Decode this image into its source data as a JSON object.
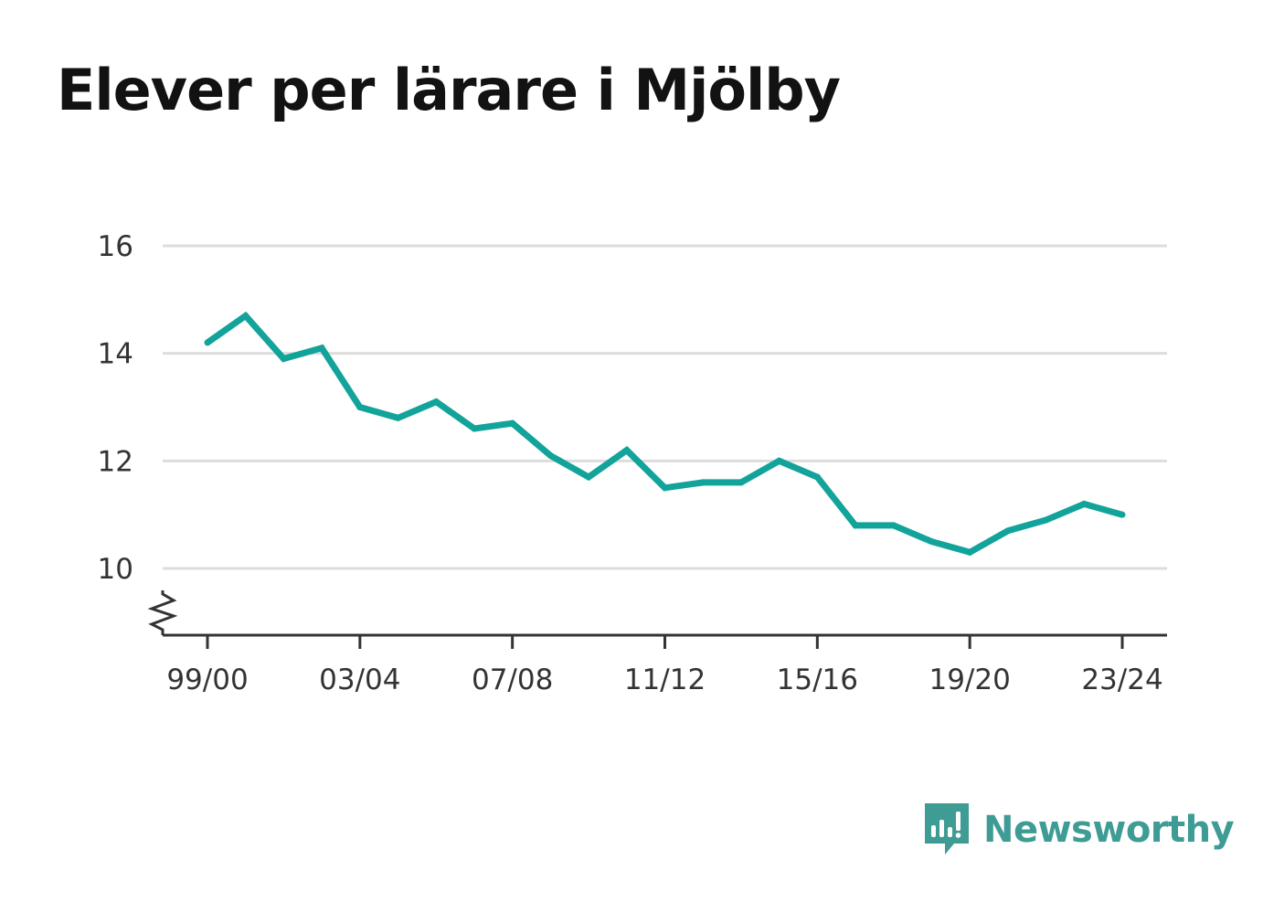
{
  "title": "Elever per lärare i Mjölby",
  "brand": {
    "name": "Newsworthy",
    "icon": "newsworthy-logo-icon",
    "color": "#3e9c94"
  },
  "chart_data": {
    "type": "line",
    "title": "Elever per lärare i Mjölby",
    "xlabel": "",
    "ylabel": "",
    "x": [
      "99/00",
      "00/01",
      "01/02",
      "02/03",
      "03/04",
      "04/05",
      "05/06",
      "06/07",
      "07/08",
      "08/09",
      "09/10",
      "10/11",
      "11/12",
      "12/13",
      "13/14",
      "14/15",
      "15/16",
      "16/17",
      "17/18",
      "18/19",
      "19/20",
      "20/21",
      "21/22",
      "22/23",
      "23/24"
    ],
    "x_tick_labels": [
      "99/00",
      "03/04",
      "07/08",
      "11/12",
      "15/16",
      "19/20",
      "23/24"
    ],
    "y_ticks": [
      10,
      12,
      14,
      16
    ],
    "ylim": [
      8.8,
      16
    ],
    "axis_break": true,
    "grid": "horizontal",
    "series": [
      {
        "color": "#12a39a",
        "values": [
          14.2,
          14.7,
          13.9,
          14.1,
          13.0,
          12.8,
          13.1,
          12.6,
          12.7,
          12.1,
          11.7,
          12.2,
          11.5,
          11.6,
          11.6,
          12.0,
          11.7,
          10.8,
          10.8,
          10.5,
          10.3,
          10.7,
          10.9,
          11.2,
          11.0
        ]
      }
    ]
  }
}
